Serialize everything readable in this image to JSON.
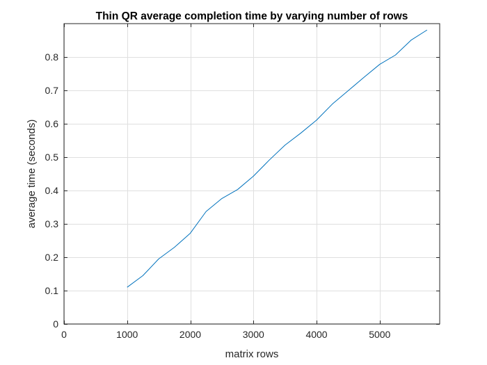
{
  "chart_data": {
    "type": "line",
    "title": "Thin QR average completion time by varying number of rows",
    "xlabel": "matrix rows",
    "ylabel": "average time (seconds)",
    "xlim": [
      0,
      5950
    ],
    "ylim": [
      0,
      0.9
    ],
    "xticks": [
      0,
      1000,
      2000,
      3000,
      4000,
      5000
    ],
    "xtick_labels": [
      "0",
      "1000",
      "2000",
      "3000",
      "4000",
      "5000"
    ],
    "yticks": [
      0,
      0.1,
      0.2,
      0.3,
      0.4,
      0.5,
      0.6,
      0.7,
      0.8
    ],
    "ytick_labels": [
      "0",
      "0.1",
      "0.2",
      "0.3",
      "0.4",
      "0.5",
      "0.6",
      "0.7",
      "0.8"
    ],
    "grid": true,
    "series": [
      {
        "color": "#0072BD",
        "x": [
          1000,
          1250,
          1500,
          1750,
          2000,
          2250,
          2500,
          2750,
          3000,
          3250,
          3500,
          3750,
          4000,
          4250,
          4500,
          4750,
          5000,
          5250,
          5500,
          5750
        ],
        "y": [
          0.11,
          0.145,
          0.195,
          0.23,
          0.272,
          0.337,
          0.376,
          0.403,
          0.443,
          0.491,
          0.536,
          0.572,
          0.611,
          0.659,
          0.699,
          0.739,
          0.778,
          0.806,
          0.851,
          0.881
        ]
      }
    ]
  }
}
